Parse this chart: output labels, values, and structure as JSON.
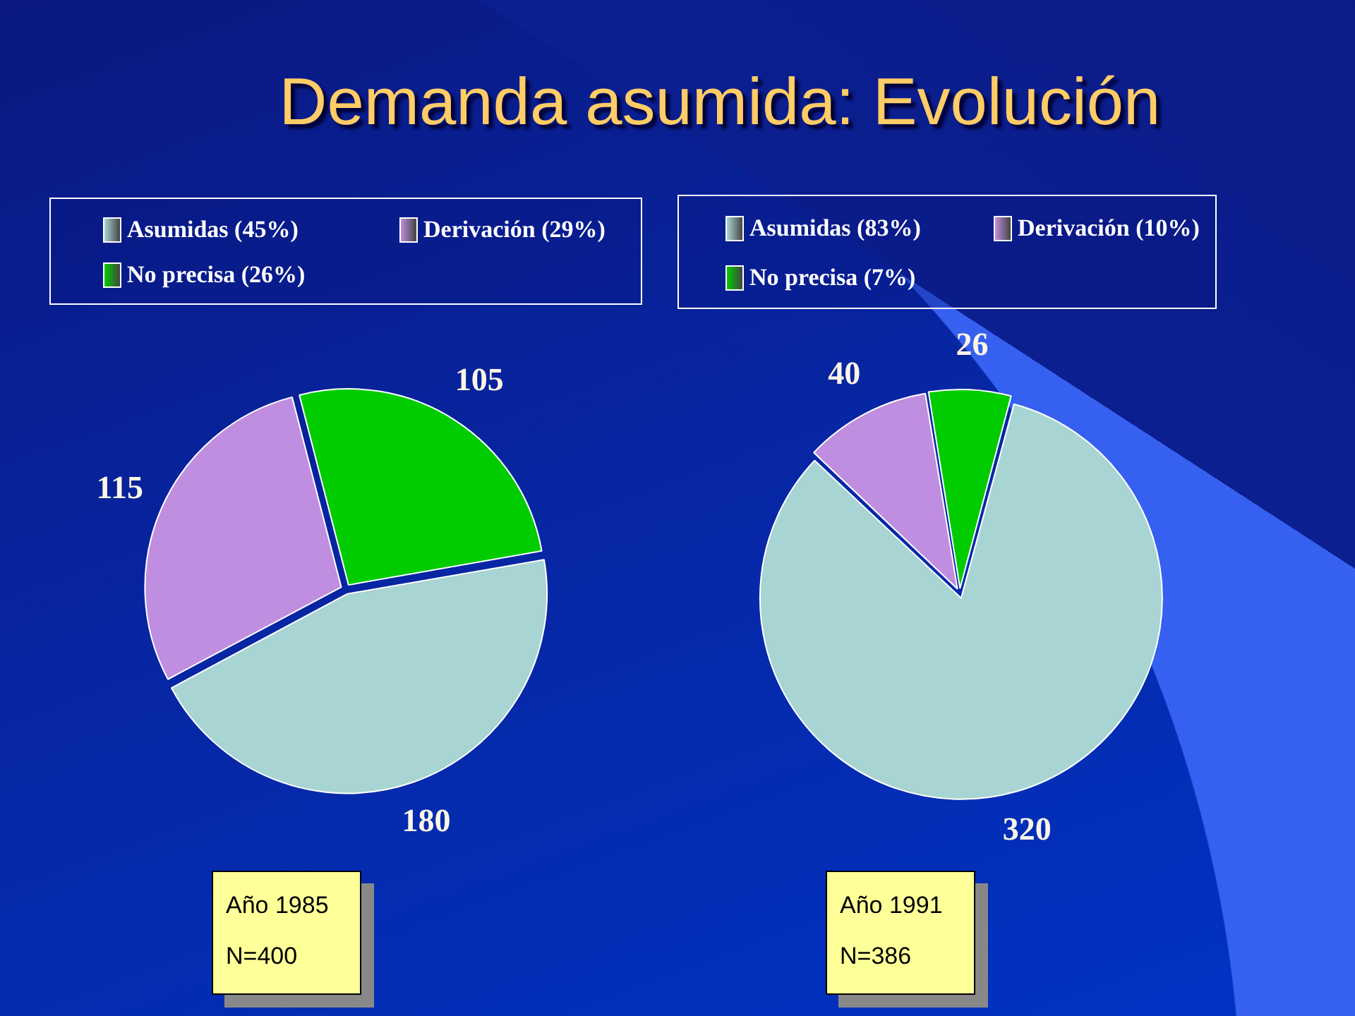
{
  "chart_data": [
    {
      "type": "pie",
      "title": "Demanda asumida: Evolución",
      "categories": [
        "Asumidas (45%)",
        "Derivación (29%)",
        "No precisa (26%)"
      ],
      "values": [
        180,
        115,
        105
      ],
      "colors": [
        "#a8d4d4",
        "#c08ee0",
        "#00cc00"
      ],
      "legend": "top",
      "data_labels": true,
      "annotations": [
        "Año 1985",
        "N=400"
      ]
    },
    {
      "type": "pie",
      "categories": [
        "Asumidas (83%)",
        "Derivación (10%)",
        "No precisa (7%)"
      ],
      "values": [
        320,
        40,
        26
      ],
      "colors": [
        "#a8d4d4",
        "#c08ee0",
        "#00cc00"
      ],
      "legend": "top",
      "data_labels": true,
      "annotations": [
        "Año 1991",
        "N=386"
      ]
    }
  ]
}
